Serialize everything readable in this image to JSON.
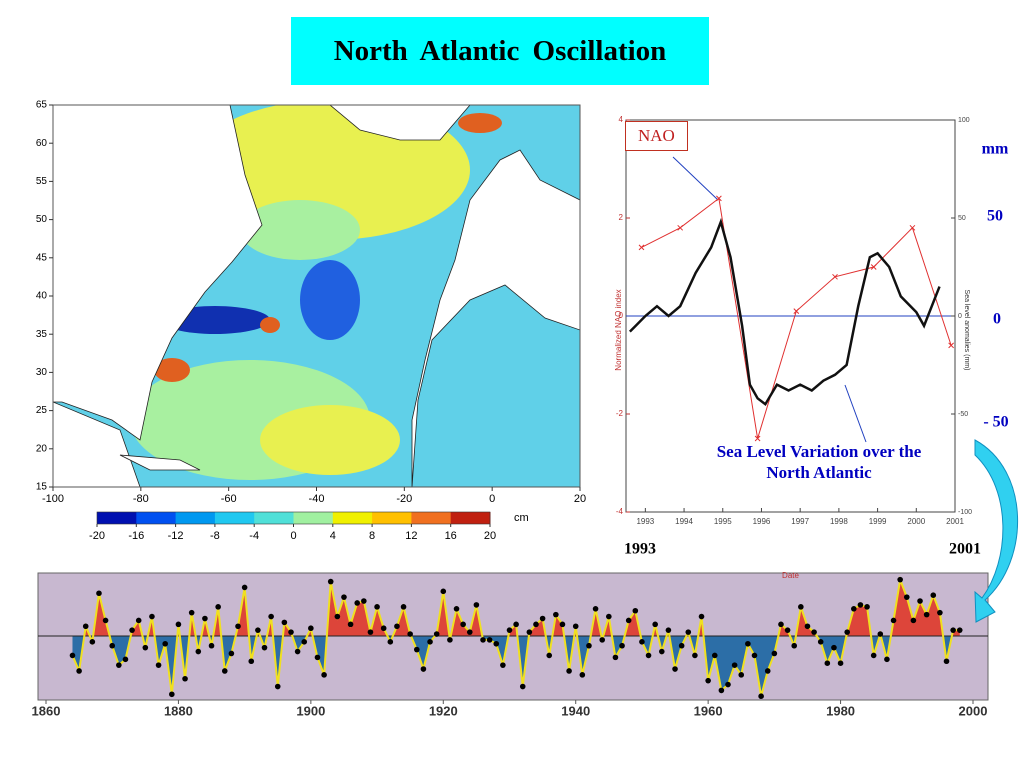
{
  "title": "North Atlantic Oscillation",
  "chart_data": [
    {
      "type": "map",
      "xlim": [
        -100,
        20
      ],
      "xticks": [
        -100,
        -80,
        -60,
        -40,
        -20,
        0,
        20
      ],
      "ylim": [
        15,
        65
      ],
      "yticks": [
        15,
        20,
        25,
        30,
        35,
        40,
        45,
        50,
        55,
        60,
        65
      ],
      "colorbar": {
        "lim": [
          -20,
          20
        ],
        "ticks": [
          -20,
          -16,
          -12,
          -8,
          -4,
          0,
          4,
          8,
          12,
          16,
          20
        ],
        "colors": [
          "#0010b0",
          "#0050f0",
          "#0098f0",
          "#20c8f0",
          "#50e0d8",
          "#a0f0a0",
          "#f0f000",
          "#ffc000",
          "#f07020",
          "#c02010"
        ],
        "unit": "cm"
      }
    },
    {
      "type": "line",
      "xlabel": "Date",
      "ylabel": "Normalized NAO index",
      "y2label": "Sea level anomalies (mm)",
      "xlim": [
        1992.5,
        2001
      ],
      "xticks": [
        1993,
        1994,
        1995,
        1996,
        1997,
        1998,
        1999,
        2000,
        2001
      ],
      "ylim": [
        -4,
        4
      ],
      "yticks": [
        -4,
        -2,
        0,
        2,
        4
      ],
      "y2lim": [
        -100,
        100
      ],
      "y2ticks": [
        -100,
        -50,
        0,
        50,
        100
      ],
      "series": [
        {
          "name": "NAO",
          "color": "#e03030",
          "x": [
            1992.9,
            1993.9,
            1994.9,
            1995.9,
            1996.9,
            1997.9,
            1998.9,
            1999.9,
            2000.9
          ],
          "values": [
            1.4,
            1.8,
            2.4,
            -2.5,
            0.1,
            0.8,
            1.0,
            1.8,
            -0.6
          ]
        },
        {
          "name": "Sea Level Variation over the North Atlantic",
          "color": "#111111",
          "axis": "y2",
          "x": [
            1992.6,
            1993.0,
            1993.3,
            1993.6,
            1993.9,
            1994.3,
            1994.7,
            1994.95,
            1995.2,
            1995.5,
            1995.7,
            1995.9,
            1996.1,
            1996.4,
            1996.7,
            1997.0,
            1997.3,
            1997.6,
            1997.9,
            1998.2,
            1998.5,
            1998.8,
            1999.0,
            1999.3,
            1999.6,
            2000.0,
            2000.2,
            2000.4,
            2000.6
          ],
          "values": [
            -8,
            0,
            5,
            0,
            5,
            22,
            35,
            48,
            30,
            -5,
            -35,
            -42,
            -45,
            -35,
            -38,
            -35,
            -38,
            -33,
            -30,
            -25,
            5,
            30,
            32,
            25,
            10,
            2,
            -5,
            5,
            15
          ]
        }
      ],
      "annotations": [
        "1993",
        "2001",
        "mm",
        "50",
        "0",
        "- 50"
      ]
    },
    {
      "type": "area",
      "xlim": [
        1860,
        2000
      ],
      "xticks": [
        1860,
        1880,
        1900,
        1920,
        1940,
        1960,
        1980,
        2000
      ],
      "ylim": [
        -3.5,
        3.5
      ],
      "line_color": "#f0e020",
      "positive_color": "#e03020",
      "negative_color": "#1060a0",
      "background": "#c8b8d0",
      "x": [
        1864,
        1865,
        1866,
        1867,
        1868,
        1869,
        1870,
        1871,
        1872,
        1873,
        1874,
        1875,
        1876,
        1877,
        1878,
        1879,
        1880,
        1881,
        1882,
        1883,
        1884,
        1885,
        1886,
        1887,
        1888,
        1889,
        1890,
        1891,
        1892,
        1893,
        1894,
        1895,
        1896,
        1897,
        1898,
        1899,
        1900,
        1901,
        1902,
        1903,
        1904,
        1905,
        1906,
        1907,
        1908,
        1909,
        1910,
        1911,
        1912,
        1913,
        1914,
        1915,
        1916,
        1917,
        1918,
        1919,
        1920,
        1921,
        1922,
        1923,
        1924,
        1925,
        1926,
        1927,
        1928,
        1929,
        1930,
        1931,
        1932,
        1933,
        1934,
        1935,
        1936,
        1937,
        1938,
        1939,
        1940,
        1941,
        1942,
        1943,
        1944,
        1945,
        1946,
        1947,
        1948,
        1949,
        1950,
        1951,
        1952,
        1953,
        1954,
        1955,
        1956,
        1957,
        1958,
        1959,
        1960,
        1961,
        1962,
        1963,
        1964,
        1965,
        1966,
        1967,
        1968,
        1969,
        1970,
        1971,
        1972,
        1973,
        1974,
        1975,
        1976,
        1977,
        1978,
        1979,
        1980,
        1981,
        1982,
        1983,
        1984,
        1985,
        1986,
        1987,
        1988,
        1989,
        1990,
        1991,
        1992,
        1993,
        1994,
        1995,
        1996,
        1997,
        1998
      ],
      "values": [
        -1.0,
        -1.8,
        0.5,
        -0.3,
        2.2,
        0.8,
        -0.5,
        -1.5,
        -1.2,
        0.3,
        0.8,
        -0.6,
        1.0,
        -1.5,
        -0.4,
        -3.0,
        0.6,
        -2.2,
        1.2,
        -0.8,
        0.9,
        -0.5,
        1.5,
        -1.8,
        -0.9,
        0.5,
        2.5,
        -1.3,
        0.3,
        -0.6,
        1.0,
        -2.6,
        0.7,
        0.2,
        -0.8,
        -0.3,
        0.4,
        -1.1,
        -2.0,
        2.8,
        1.0,
        2.0,
        0.6,
        1.7,
        1.8,
        0.2,
        1.5,
        0.4,
        -0.3,
        0.5,
        1.5,
        0.1,
        -0.7,
        -1.7,
        -0.3,
        0.1,
        2.3,
        -0.2,
        1.4,
        0.6,
        0.2,
        1.6,
        -0.2,
        -0.2,
        -0.4,
        -1.5,
        0.3,
        0.6,
        -2.6,
        0.2,
        0.6,
        0.9,
        -1.0,
        1.1,
        0.6,
        -1.8,
        0.5,
        -2.0,
        -0.5,
        1.4,
        -0.2,
        1.0,
        -1.1,
        -0.5,
        0.8,
        1.3,
        -0.3,
        -1.0,
        0.6,
        -0.8,
        0.3,
        -1.7,
        -0.5,
        0.2,
        -1.0,
        1.0,
        -2.3,
        -1.0,
        -2.8,
        -2.5,
        -1.5,
        -2.0,
        -0.4,
        -1.0,
        -3.1,
        -1.8,
        -0.9,
        0.6,
        0.3,
        -0.5,
        1.5,
        0.5,
        0.2,
        -0.3,
        -1.4,
        -0.6,
        -1.4,
        0.2,
        1.4,
        1.6,
        1.5,
        -1.0,
        0.1,
        -1.2,
        0.8,
        2.9,
        2.0,
        0.8,
        1.8,
        1.1,
        2.1,
        1.2,
        -1.3,
        0.3,
        0.3
      ]
    }
  ]
}
